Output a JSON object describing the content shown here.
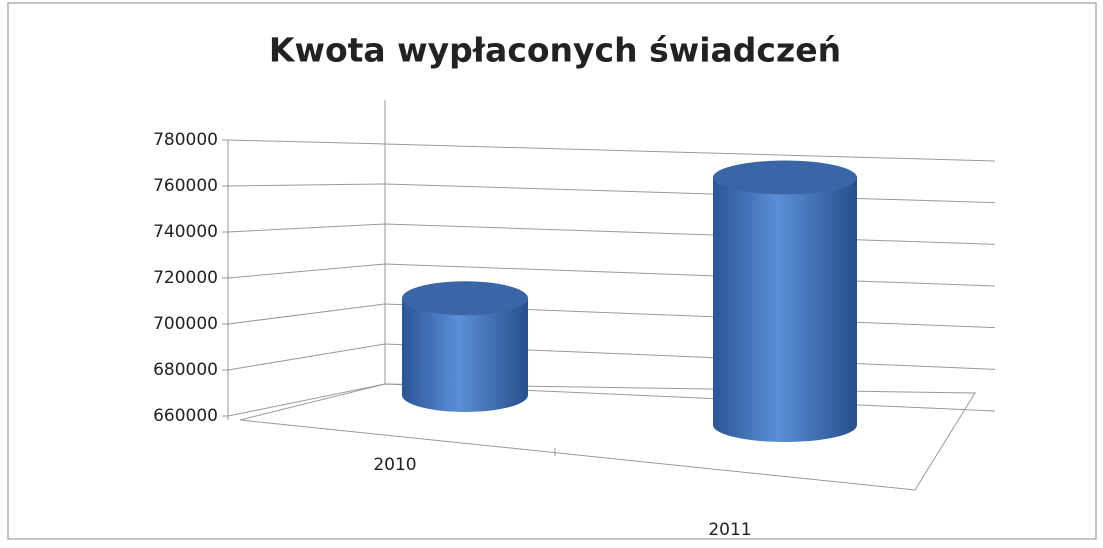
{
  "chart_data": {
    "type": "bar3d",
    "title": "Kwota wypłaconych świadczeń",
    "categories": [
      "2010",
      "2011"
    ],
    "values": [
      705000,
      770000
    ],
    "color": "#4a7ec4",
    "ylim": [
      660000,
      780000
    ],
    "yticks": [
      660000,
      680000,
      700000,
      720000,
      740000,
      760000,
      780000
    ],
    "grid": true
  }
}
